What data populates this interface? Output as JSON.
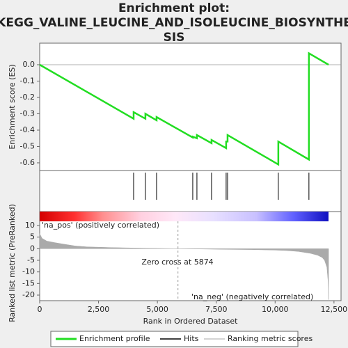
{
  "title_lines": [
    "Enrichment plot:",
    "KEGG_VALINE_LEUCINE_AND_ISOLEUCINE_BIOSYNTHE",
    "SIS"
  ],
  "chart_data": [
    {
      "type": "line",
      "ylabel": "Enrichment score (ES)",
      "color": "#22dd22",
      "xlim": [
        0,
        12800
      ],
      "ylim": [
        -0.647,
        0.132
      ],
      "yticks": [
        {
          "value": 0,
          "label": "0.0"
        },
        -0.1,
        -0.2,
        -0.3,
        -0.4,
        -0.5,
        -0.6
      ],
      "x": [
        0,
        3990,
        3990,
        4490,
        4490,
        4965,
        4965,
        6502,
        6502,
        6679,
        6679,
        7300,
        7300,
        7920,
        7920,
        7980,
        7980,
        10136,
        10136,
        11436,
        11436,
        12270
      ],
      "values": [
        0,
        -0.33,
        -0.29,
        -0.33,
        -0.3,
        -0.34,
        -0.32,
        -0.445,
        -0.44,
        -0.45,
        -0.43,
        -0.48,
        -0.46,
        -0.51,
        -0.47,
        -0.47,
        -0.43,
        -0.61,
        -0.47,
        -0.58,
        0.07,
        0
      ]
    },
    {
      "type": "hits",
      "xlim": [
        0,
        12800
      ],
      "x": [
        3990,
        4490,
        4965,
        6502,
        6679,
        7300,
        7920,
        7980,
        10136,
        11436
      ]
    },
    {
      "type": "area",
      "ylabel": "Ranked list metric (PreRanked)",
      "xlabel": "Rank in Ordered Dataset",
      "color": "#aaaaaa",
      "xlim": [
        0,
        12800
      ],
      "ylim": [
        -22.4,
        16
      ],
      "yticks": [
        10,
        5,
        0,
        -5,
        -10,
        -15,
        -20
      ],
      "xticks": [
        0,
        {
          "value": 2500,
          "label": "2,500"
        },
        {
          "value": 5000,
          "label": "5,000"
        },
        {
          "value": 7500,
          "label": "7,500"
        },
        {
          "value": 10000,
          "label": "10,000"
        },
        {
          "value": 12500,
          "label": "12,500"
        }
      ],
      "x": [
        0,
        100,
        300,
        600,
        1000,
        1500,
        2000,
        3000,
        4000,
        5000,
        5874,
        7000,
        8000,
        9000,
        10000,
        10500,
        11000,
        11500,
        11800,
        12000,
        12100,
        12200,
        12250,
        12270
      ],
      "values": [
        6.5,
        4.5,
        3.3,
        2.7,
        2.0,
        1.2,
        0.8,
        0.5,
        0.3,
        0.15,
        0,
        -0.15,
        -0.3,
        -0.4,
        -0.6,
        -0.8,
        -1.2,
        -2,
        -2.8,
        -3.8,
        -5,
        -8,
        -14,
        -22
      ],
      "zero_cross": 5874,
      "annotations": [
        "'na_pos' (positively correlated)",
        "Zero cross at 5874",
        "'na_neg' (negatively correlated)"
      ]
    }
  ],
  "legend": [
    "Enrichment profile",
    "Hits",
    "Ranking metric scores"
  ]
}
